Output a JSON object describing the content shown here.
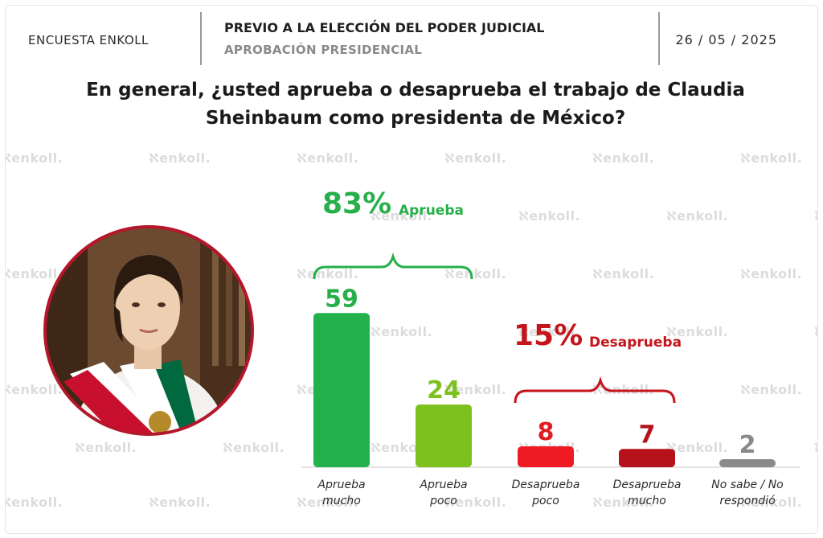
{
  "header": {
    "left": "ENCUESTA ENKOLL",
    "title": "PREVIO A LA ELECCIÓN DEL PODER JUDICIAL",
    "subtitle": "APROBACIÓN PRESIDENCIAL",
    "date": "26 / 05 / 2025"
  },
  "question": {
    "line1": "En general, ¿usted aprueba o desaprueba el trabajo de Claudia",
    "line2": "Sheinbaum como presidenta de México?"
  },
  "watermark": "enkoll.",
  "groups": {
    "approve": {
      "percent": "83%",
      "label": "Aprueba"
    },
    "disapprove": {
      "percent": "15%",
      "label": "Desaprueba"
    }
  },
  "colors": {
    "green_dark": "#22b14c",
    "green_light": "#7dc11f",
    "red_light": "#ee1b24",
    "red_dark": "#b5121b",
    "gray": "#8a8a8a",
    "approve_text": "#27b04a",
    "disapprove_text": "#c4151c"
  },
  "chart_data": {
    "type": "bar",
    "title": "",
    "xlabel": "",
    "ylabel": "",
    "ylim": [
      0,
      60
    ],
    "grid": false,
    "categories": [
      [
        "Aprueba",
        "mucho"
      ],
      [
        "Aprueba",
        "poco"
      ],
      [
        "Desaprueba",
        "poco"
      ],
      [
        "Desaprueba",
        "mucho"
      ],
      [
        "No sabe / No",
        "respondió"
      ]
    ],
    "values": [
      59,
      24,
      8,
      7,
      2
    ],
    "data_labels": [
      "59",
      "24",
      "8",
      "7",
      "2"
    ],
    "bar_colors": [
      "#22b14c",
      "#7dc11f",
      "#ee1b24",
      "#b5121b",
      "#8a8a8a"
    ],
    "label_colors": [
      "#27b04a",
      "#7dc11f",
      "#e01b22",
      "#b5121b",
      "#8a8a8a"
    ]
  }
}
